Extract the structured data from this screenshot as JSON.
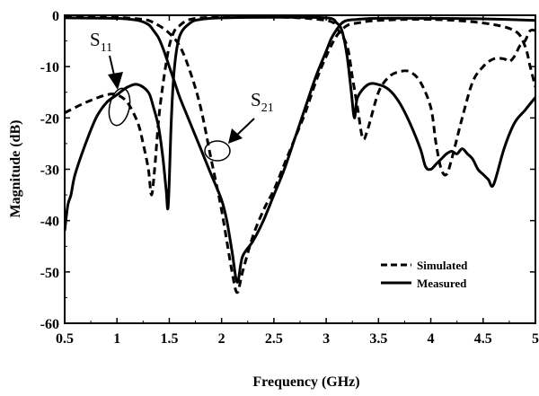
{
  "chart_data": {
    "type": "line",
    "xlabel": "Frequency (GHz)",
    "ylabel": "Magnitude (dB)",
    "xlim": [
      0.5,
      5
    ],
    "ylim": [
      -60,
      0
    ],
    "xticks": [
      "0.5",
      "1",
      "1.5",
      "2",
      "2.5",
      "3",
      "3.5",
      "4",
      "4.5",
      "5"
    ],
    "yticks": [
      "0",
      "-10",
      "-20",
      "-30",
      "-40",
      "-50",
      "-60"
    ],
    "grid": false,
    "legend_position": "bottom-right",
    "legend": [
      {
        "label": "Simulated",
        "style": "dashed"
      },
      {
        "label": "Measured",
        "style": "solid"
      }
    ],
    "annotations": [
      {
        "main": "S",
        "sub": "11"
      },
      {
        "main": "S",
        "sub": "21"
      }
    ],
    "series": [
      {
        "parameter": "S11",
        "style": "dashed",
        "x": [
          0.5,
          0.7,
          0.9,
          1.0,
          1.1,
          1.2,
          1.25,
          1.3,
          1.33,
          1.36,
          1.4,
          1.45,
          1.5,
          1.55,
          1.6,
          1.65,
          1.7,
          1.8,
          2.0,
          2.5,
          3.0,
          3.1,
          3.2,
          3.25,
          3.3,
          3.35,
          3.4,
          3.5,
          3.6,
          3.7,
          3.8,
          3.9,
          4.0,
          4.05,
          4.1,
          4.15,
          4.2,
          4.3,
          4.4,
          4.5,
          4.6,
          4.7,
          4.75,
          4.8,
          4.85,
          4.9,
          4.95,
          5.0
        ],
        "y": [
          -19,
          -17,
          -15.5,
          -15.5,
          -17,
          -21,
          -25,
          -30,
          -35,
          -30,
          -20,
          -12,
          -6,
          -3,
          -2,
          -1.2,
          -0.8,
          -0.5,
          -0.4,
          -0.3,
          -1,
          -2.5,
          -6,
          -12,
          -18,
          -24,
          -22,
          -15,
          -12,
          -11,
          -11,
          -13,
          -18,
          -25,
          -30,
          -31,
          -28,
          -20,
          -13,
          -10,
          -8.5,
          -8.5,
          -9,
          -8,
          -6,
          -5,
          -3,
          -3
        ]
      },
      {
        "parameter": "S21",
        "style": "dashed",
        "x": [
          0.5,
          0.8,
          1.0,
          1.2,
          1.3,
          1.4,
          1.5,
          1.6,
          1.7,
          1.8,
          1.9,
          2.0,
          2.1,
          2.15,
          2.2,
          2.3,
          2.4,
          2.5,
          2.6,
          2.7,
          2.8,
          2.9,
          3.0,
          3.1,
          3.2,
          3.3,
          3.5,
          4.0,
          4.5,
          4.8,
          4.9,
          4.95,
          5.0
        ],
        "y": [
          -0.2,
          -0.3,
          -0.4,
          -0.7,
          -1,
          -2,
          -3.5,
          -6,
          -11,
          -18,
          -28,
          -38,
          -50,
          -54,
          -50,
          -43,
          -38,
          -34,
          -29,
          -24,
          -19,
          -13,
          -8,
          -4,
          -2,
          -1.5,
          -1,
          -0.8,
          -1.5,
          -3,
          -6,
          -10,
          -14
        ]
      },
      {
        "parameter": "S11",
        "style": "solid",
        "x": [
          0.5,
          0.53,
          0.56,
          0.6,
          0.7,
          0.8,
          0.9,
          1.0,
          1.1,
          1.2,
          1.3,
          1.35,
          1.4,
          1.44,
          1.47,
          1.49,
          1.52,
          1.55,
          1.6,
          1.7,
          1.8,
          2.0,
          2.5,
          3.0,
          3.1,
          3.15,
          3.2,
          3.24,
          3.27,
          3.3,
          3.4,
          3.5,
          3.6,
          3.7,
          3.8,
          3.9,
          3.95,
          4.0,
          4.05,
          4.1,
          4.15,
          4.2,
          4.25,
          4.3,
          4.35,
          4.4,
          4.45,
          4.5,
          4.55,
          4.6,
          4.7,
          4.8,
          4.9,
          5.0
        ],
        "y": [
          -42,
          -37,
          -35,
          -31,
          -25,
          -20,
          -17,
          -15.5,
          -14,
          -13.5,
          -15,
          -18,
          -22,
          -28,
          -34,
          -37,
          -20,
          -10,
          -4,
          -1.5,
          -0.8,
          -0.5,
          -0.4,
          -0.5,
          -1.5,
          -3,
          -8,
          -15,
          -20,
          -16,
          -13.5,
          -13.5,
          -14.5,
          -17,
          -21,
          -26,
          -29.5,
          -30,
          -29,
          -28,
          -27,
          -26.5,
          -27,
          -26,
          -27,
          -28,
          -30,
          -31,
          -32,
          -33,
          -26,
          -21,
          -18.5,
          -16
        ]
      },
      {
        "parameter": "S21",
        "style": "solid",
        "x": [
          0.5,
          1.0,
          1.2,
          1.3,
          1.35,
          1.4,
          1.45,
          1.5,
          1.55,
          1.6,
          1.7,
          1.8,
          1.9,
          2.0,
          2.05,
          2.1,
          2.15,
          2.2,
          2.3,
          2.4,
          2.5,
          2.6,
          2.7,
          2.8,
          2.9,
          3.0,
          3.05,
          3.1,
          3.15,
          3.2,
          3.3,
          3.5,
          4.0,
          4.5,
          5.0
        ],
        "y": [
          -0.5,
          -0.6,
          -1,
          -1.8,
          -3,
          -4.5,
          -7,
          -10,
          -13,
          -16,
          -21,
          -26,
          -31,
          -36,
          -40,
          -46,
          -52,
          -47,
          -44,
          -40,
          -35,
          -30,
          -24,
          -18,
          -12,
          -7,
          -4.5,
          -2.8,
          -1.5,
          -1,
          -0.8,
          -0.6,
          -0.6,
          -0.7,
          -1
        ]
      }
    ]
  }
}
